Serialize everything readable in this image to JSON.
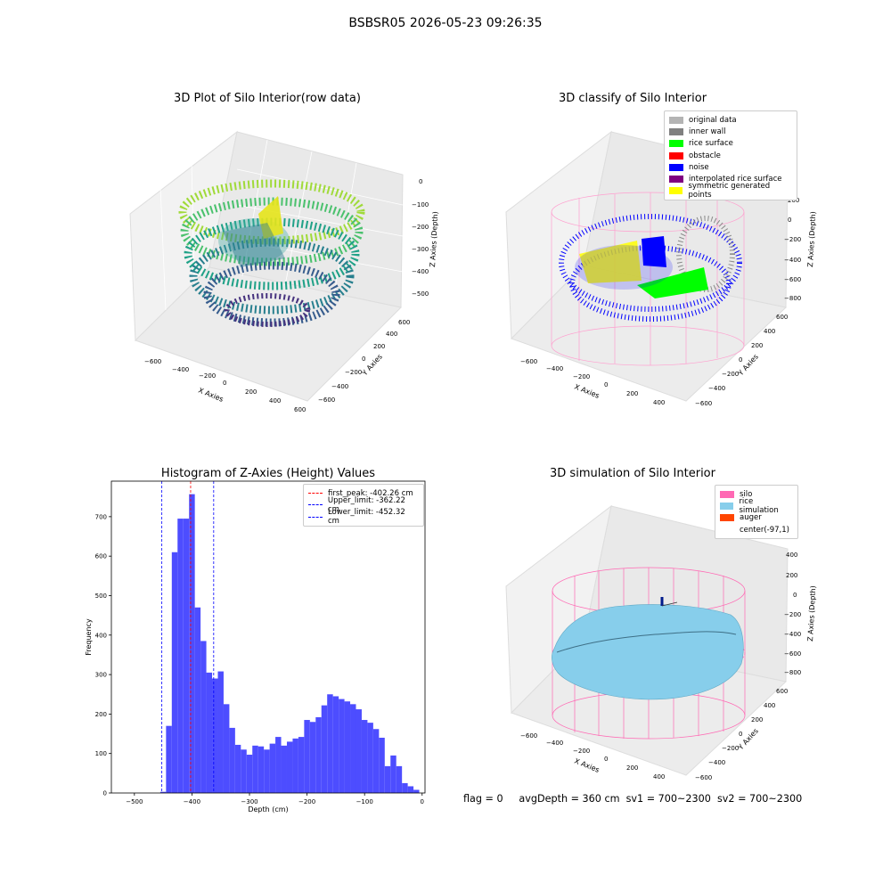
{
  "figure": {
    "suptitle": "BSBSR05 2026-05-23 09:26:35",
    "status_text": "flag = 0     avgDepth = 360 cm  sv1 = 700~2300  sv2 = 700~2300"
  },
  "panels": {
    "raw": {
      "title": "3D Plot of Silo Interior(row data)",
      "xlabel": "X Axies",
      "ylabel": "Y Axies",
      "zlabel": "Z Axies (Depth)",
      "x_ticks": [
        "−600",
        "−400",
        "−200",
        "0",
        "200",
        "400",
        "600"
      ],
      "y_ticks": [
        "600",
        "400",
        "200",
        "0",
        "−200",
        "−400",
        "−600"
      ],
      "z_ticks": [
        "0",
        "−100",
        "−200",
        "−300",
        "−400",
        "−500"
      ]
    },
    "classify": {
      "title": "3D classify of Silo Interior",
      "xlabel": "X Axies",
      "ylabel": "Y Axies",
      "zlabel": "Z Axies (Depth)",
      "x_ticks": [
        "−600",
        "−400",
        "−200",
        "0",
        "200",
        "400"
      ],
      "y_ticks": [
        "600",
        "400",
        "200",
        "0",
        "−200",
        "−400",
        "−600"
      ],
      "z_ticks": [
        "200",
        "0",
        "−200",
        "−400",
        "−600",
        "−800"
      ],
      "legend": [
        {
          "label": "original data",
          "color": "#b4b4b4"
        },
        {
          "label": "inner wall",
          "color": "#808080"
        },
        {
          "label": "rice surface",
          "color": "#00ff00"
        },
        {
          "label": "obstacle",
          "color": "#ff0000"
        },
        {
          "label": "noise",
          "color": "#0000ff"
        },
        {
          "label": "interpolated rice surface",
          "color": "#800080"
        },
        {
          "label": "symmetric generated points",
          "color": "#ffff00"
        }
      ]
    },
    "simulation": {
      "title": "3D simulation of Silo Interior",
      "xlabel": "X Axies",
      "ylabel": "Y Axies",
      "zlabel": "Z Axies (Depth)",
      "x_ticks": [
        "−600",
        "−400",
        "−200",
        "0",
        "200",
        "400"
      ],
      "y_ticks": [
        "600",
        "400",
        "200",
        "0",
        "−200",
        "−400",
        "−600"
      ],
      "z_ticks": [
        "400",
        "200",
        "0",
        "−200",
        "−400",
        "−600",
        "−800"
      ],
      "legend": [
        {
          "label": "silo",
          "color": "#ff69b4"
        },
        {
          "label": "rice simulation",
          "color": "#87ceeb"
        },
        {
          "label": "auger",
          "color": "#ff4500"
        },
        {
          "label": "center(-97,1)",
          "color": ""
        }
      ]
    }
  },
  "chart_data": [
    {
      "type": "bar",
      "title": "Histogram of Z-Axies (Height) Values",
      "xlabel": "Depth (cm)",
      "ylabel": "Frequency",
      "xlim": [
        -540,
        5
      ],
      "ylim": [
        0,
        790
      ],
      "x_ticks": [
        -500,
        -400,
        -300,
        -200,
        -100,
        0
      ],
      "y_ticks": [
        0,
        100,
        200,
        300,
        400,
        500,
        600,
        700
      ],
      "bar_color": "#4d4dff",
      "bin_width": 10,
      "bins": [
        {
          "x0": -455,
          "value": 3
        },
        {
          "x0": -445,
          "value": 170
        },
        {
          "x0": -435,
          "value": 610
        },
        {
          "x0": -425,
          "value": 695
        },
        {
          "x0": -415,
          "value": 695
        },
        {
          "x0": -405,
          "value": 757
        },
        {
          "x0": -395,
          "value": 470
        },
        {
          "x0": -385,
          "value": 385
        },
        {
          "x0": -375,
          "value": 305
        },
        {
          "x0": -365,
          "value": 290
        },
        {
          "x0": -355,
          "value": 308
        },
        {
          "x0": -345,
          "value": 225
        },
        {
          "x0": -335,
          "value": 165
        },
        {
          "x0": -325,
          "value": 122
        },
        {
          "x0": -315,
          "value": 110
        },
        {
          "x0": -305,
          "value": 97
        },
        {
          "x0": -295,
          "value": 120
        },
        {
          "x0": -285,
          "value": 118
        },
        {
          "x0": -275,
          "value": 110
        },
        {
          "x0": -265,
          "value": 125
        },
        {
          "x0": -255,
          "value": 142
        },
        {
          "x0": -245,
          "value": 120
        },
        {
          "x0": -235,
          "value": 130
        },
        {
          "x0": -225,
          "value": 138
        },
        {
          "x0": -215,
          "value": 142
        },
        {
          "x0": -205,
          "value": 185
        },
        {
          "x0": -195,
          "value": 180
        },
        {
          "x0": -185,
          "value": 192
        },
        {
          "x0": -175,
          "value": 222
        },
        {
          "x0": -165,
          "value": 250
        },
        {
          "x0": -155,
          "value": 245
        },
        {
          "x0": -145,
          "value": 238
        },
        {
          "x0": -135,
          "value": 232
        },
        {
          "x0": -125,
          "value": 225
        },
        {
          "x0": -115,
          "value": 212
        },
        {
          "x0": -105,
          "value": 185
        },
        {
          "x0": -95,
          "value": 178
        },
        {
          "x0": -85,
          "value": 162
        },
        {
          "x0": -75,
          "value": 140
        },
        {
          "x0": -65,
          "value": 68
        },
        {
          "x0": -55,
          "value": 95
        },
        {
          "x0": -45,
          "value": 68
        },
        {
          "x0": -35,
          "value": 25
        },
        {
          "x0": -25,
          "value": 17
        },
        {
          "x0": -15,
          "value": 8
        }
      ],
      "vlines": [
        {
          "x": -402.26,
          "color": "#ff0000",
          "label": "first_peak: -402.26 cm"
        },
        {
          "x": -362.22,
          "color": "#0000ff",
          "label": "Upper_limit: -362.22 cm"
        },
        {
          "x": -452.32,
          "color": "#0000ff",
          "label": "Lower_limit: -452.32 cm"
        }
      ],
      "legend_position": "top-right"
    }
  ]
}
